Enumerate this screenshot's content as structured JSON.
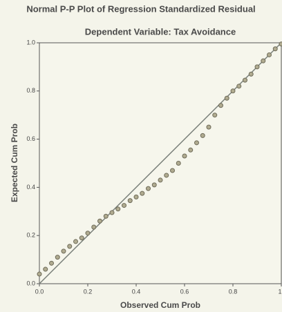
{
  "chart_data": {
    "type": "scatter",
    "title": "Normal P-P Plot of Regression Standardized Residual",
    "subtitle": "Dependent Variable: Tax Avoidance",
    "x_label": "Observed Cum Prob",
    "y_label": "Expected Cum Prob",
    "color": "#6d6a58",
    "line_color": "#7a807a",
    "xlim": [
      0,
      1
    ],
    "ylim": [
      0,
      1
    ],
    "xticks": [
      {
        "value": 0,
        "label": "0.0"
      },
      0.2,
      0.4,
      0.6,
      0.8,
      1
    ],
    "yticks": [
      {
        "value": 0,
        "label": "0.0"
      },
      0.2,
      0.4,
      0.6,
      0.8,
      {
        "value": 1,
        "label": "1.0"
      }
    ],
    "x": [
      0,
      0.025,
      0.05,
      0.075,
      0.1,
      0.125,
      0.15,
      0.175,
      0.2,
      0.225,
      0.25,
      0.275,
      0.3,
      0.325,
      0.35,
      0.375,
      0.4,
      0.425,
      0.45,
      0.475,
      0.5,
      0.525,
      0.55,
      0.575,
      0.6,
      0.625,
      0.65,
      0.675,
      0.7,
      0.725,
      0.75,
      0.775,
      0.8,
      0.825,
      0.85,
      0.875,
      0.9,
      0.925,
      0.95,
      0.975,
      1
    ],
    "values": [
      0.04,
      0.06,
      0.085,
      0.11,
      0.135,
      0.155,
      0.175,
      0.19,
      0.21,
      0.235,
      0.26,
      0.28,
      0.295,
      0.31,
      0.325,
      0.345,
      0.36,
      0.375,
      0.395,
      0.41,
      0.43,
      0.45,
      0.47,
      0.5,
      0.53,
      0.555,
      0.585,
      0.615,
      0.65,
      0.7,
      0.74,
      0.77,
      0.8,
      0.82,
      0.845,
      0.87,
      0.9,
      0.925,
      0.95,
      0.975,
      0.995
    ]
  }
}
